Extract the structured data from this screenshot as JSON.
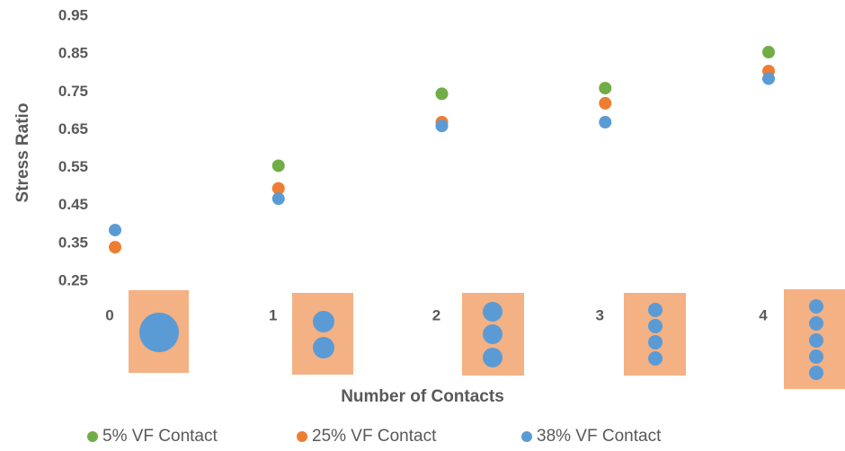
{
  "chart_data": {
    "type": "scatter",
    "x_label": "Number of Contacts",
    "y_label": "Stress Ratio",
    "x": [
      0,
      1,
      2,
      3,
      4
    ],
    "series": [
      {
        "name": "5% VF Contact",
        "color": "#70ad47",
        "values": [
          null,
          0.555,
          0.745,
          0.76,
          0.855
        ]
      },
      {
        "name": "25% VF Contact",
        "color": "#ed7d31",
        "values": [
          0.34,
          0.495,
          0.67,
          0.72,
          0.805
        ]
      },
      {
        "name": "38% VF Contact",
        "color": "#5b9bd5",
        "values": [
          0.385,
          0.468,
          0.66,
          0.67,
          0.785
        ]
      }
    ],
    "xlim": [
      0,
      4
    ],
    "xticks": [
      0,
      1,
      2,
      3,
      4
    ],
    "ylim": [
      0.25,
      0.95
    ],
    "yticks": [
      0.25,
      0.35,
      0.45,
      0.55,
      0.65,
      0.75,
      0.85,
      0.95
    ],
    "legend": "bottom"
  }
}
